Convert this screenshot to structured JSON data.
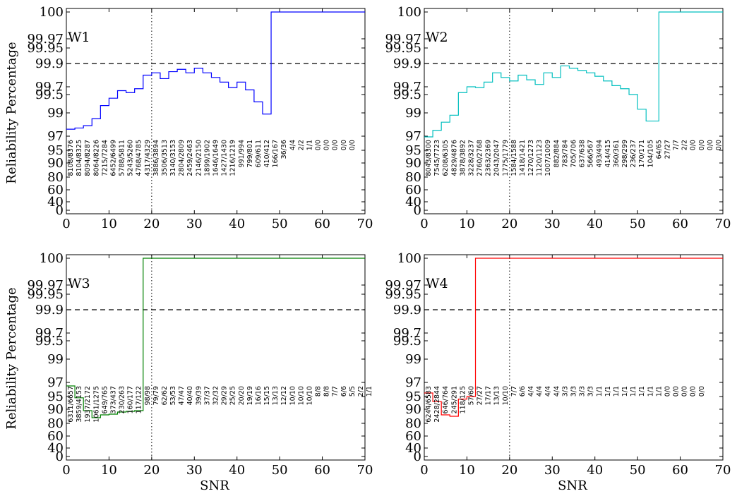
{
  "figure": {
    "ylabel": "Reliability Percentage",
    "xlabel": "SNR"
  },
  "chart_data": [
    {
      "type": "line",
      "title": "W1",
      "color": "#0000ff",
      "xlim": [
        0,
        70
      ],
      "xticks": [
        0,
        10,
        20,
        30,
        40,
        50,
        60,
        70
      ],
      "yticks": [
        "0",
        "40",
        "60",
        "80",
        "90",
        "95",
        "97",
        "99",
        "99.5",
        "99.7",
        "99.9",
        "99.95",
        "99.97",
        "100"
      ],
      "yscale": "nonlinear reliability scale",
      "threshold_y": 99.9,
      "snr_marker_x": 20,
      "x": [
        0,
        1,
        2,
        3,
        4,
        5,
        6,
        7,
        8,
        9,
        10,
        11,
        12,
        13,
        14,
        15,
        16,
        17,
        18,
        19,
        20,
        21,
        22,
        23,
        24,
        25,
        26,
        27,
        28,
        29,
        30,
        31,
        32,
        33,
        34,
        35,
        36,
        37,
        38,
        39,
        40,
        41,
        42,
        43,
        44,
        45,
        46,
        47,
        48,
        49,
        50,
        51,
        52,
        53,
        54,
        55,
        56,
        57,
        58,
        59,
        60,
        61,
        62,
        63,
        64,
        65,
        66,
        67,
        68,
        69
      ],
      "y": [
        97.6,
        97.6,
        97.7,
        97.7,
        97.9,
        97.9,
        98.5,
        98.5,
        99.2,
        99.2,
        99.4,
        99.4,
        99.6,
        99.6,
        99.55,
        99.55,
        99.65,
        99.65,
        99.8,
        99.8,
        99.82,
        99.82,
        99.77,
        99.77,
        99.83,
        99.83,
        99.85,
        99.85,
        99.82,
        99.82,
        99.86,
        99.86,
        99.82,
        99.82,
        99.78,
        99.78,
        99.74,
        99.74,
        99.68,
        99.68,
        99.74,
        99.74,
        99.62,
        99.62,
        99.3,
        99.3,
        98.9,
        98.9,
        100,
        100,
        100,
        100,
        100,
        100,
        100,
        100,
        100,
        100,
        100,
        100,
        100,
        100,
        100,
        100,
        100,
        100,
        100,
        100,
        100,
        100
      ],
      "ratios": [
        "8108/8376",
        "8104/8325",
        "8094/8287",
        "8064/8226",
        "7215/7284",
        "6452/6499",
        "5788/5811",
        "5243/5260",
        "4768/4785",
        "4317/4329",
        "3886/3894",
        "3506/3513",
        "3140/3153",
        "2804/2809",
        "2459/2463",
        "2146/2150",
        "1899/1902",
        "1646/1649",
        "1427/1430",
        "1216/1219",
        "991/994",
        "799/801",
        "609/611",
        "410/412",
        "166/167",
        "36/36",
        "4/4",
        "2/2",
        "1/1",
        "0/0",
        "0/0",
        "0/0",
        "0/0",
        "0/0"
      ]
    },
    {
      "type": "line",
      "title": "W2",
      "color": "#00bfbf",
      "xlim": [
        0,
        70
      ],
      "xticks": [
        0,
        10,
        20,
        30,
        40,
        50,
        60,
        70
      ],
      "yticks": [
        "0",
        "40",
        "60",
        "80",
        "90",
        "95",
        "97",
        "99",
        "99.5",
        "99.7",
        "99.9",
        "99.95",
        "99.97",
        "100"
      ],
      "threshold_y": 99.9,
      "snr_marker_x": 20,
      "x": [
        0,
        1,
        2,
        3,
        4,
        5,
        6,
        7,
        8,
        9,
        10,
        11,
        12,
        13,
        14,
        15,
        16,
        17,
        18,
        19,
        20,
        21,
        22,
        23,
        24,
        25,
        26,
        27,
        28,
        29,
        30,
        31,
        32,
        33,
        34,
        35,
        36,
        37,
        38,
        39,
        40,
        41,
        42,
        43,
        44,
        45,
        46,
        47,
        48,
        49,
        50,
        51,
        52,
        53,
        54,
        55,
        56,
        57,
        58,
        59,
        60,
        61,
        62,
        63,
        64,
        65,
        66,
        67,
        68,
        69
      ],
      "y": [
        96.9,
        96.9,
        97.5,
        97.5,
        98.2,
        98.2,
        98.8,
        98.8,
        99.55,
        99.55,
        99.7,
        99.7,
        99.68,
        99.68,
        99.74,
        99.74,
        99.82,
        99.82,
        99.78,
        99.78,
        99.75,
        99.75,
        99.8,
        99.8,
        99.76,
        99.76,
        99.72,
        99.72,
        99.82,
        99.82,
        99.78,
        99.78,
        99.88,
        99.88,
        99.86,
        99.86,
        99.84,
        99.84,
        99.82,
        99.82,
        99.79,
        99.79,
        99.75,
        99.75,
        99.71,
        99.71,
        99.65,
        99.65,
        99.5,
        99.5,
        99.1,
        99.1,
        98.3,
        98.3,
        98.3,
        100,
        100,
        100,
        100,
        100,
        100,
        100,
        100,
        100,
        100,
        100,
        100,
        100,
        100,
        100
      ],
      "ratios": [
        "8043/8300",
        "7545/7723",
        "6208/6305",
        "4829/4876",
        "3878/3892",
        "3228/3237",
        "2760/2768",
        "2363/2369",
        "2043/2047",
        "1775/1779",
        "1584/1588",
        "1418/1421",
        "1270/1273",
        "1120/1123",
        "1007/1009",
        "882/884",
        "783/784",
        "705/706",
        "637/638",
        "566/567",
        "493/494",
        "414/415",
        "360/361",
        "298/299",
        "236/237",
        "170/171",
        "104/105",
        "64/65",
        "27/27",
        "7/7",
        "2/2",
        "0/0",
        "0/0",
        "0/0",
        "0/0"
      ]
    },
    {
      "type": "line",
      "title": "W3",
      "color": "#008000",
      "xlim": [
        0,
        70
      ],
      "xticks": [
        0,
        10,
        20,
        30,
        40,
        50,
        60,
        70
      ],
      "yticks": [
        "0",
        "40",
        "60",
        "80",
        "90",
        "95",
        "97",
        "99",
        "99.5",
        "99.7",
        "99.9",
        "99.95",
        "99.97",
        "100"
      ],
      "threshold_y": 99.9,
      "snr_marker_x": 20,
      "x": [
        0,
        1,
        2,
        3,
        4,
        5,
        6,
        7,
        8,
        9,
        10,
        11,
        12,
        13,
        14,
        15,
        16,
        17,
        18,
        19,
        20,
        21,
        22,
        23,
        24,
        25,
        26,
        27,
        28,
        29,
        30,
        31,
        32,
        33,
        34,
        35,
        36,
        37,
        38,
        39,
        40,
        41,
        42,
        43,
        44,
        45,
        46,
        47,
        48,
        49,
        50,
        51,
        52,
        53,
        54,
        55,
        56,
        57,
        58,
        59,
        60,
        61,
        62,
        63,
        64,
        65,
        66,
        67,
        68,
        69
      ],
      "y": [
        96.5,
        96.5,
        94.5,
        94.5,
        89,
        89,
        84,
        84,
        86,
        86,
        86.5,
        86.5,
        88,
        88,
        88.5,
        88.5,
        89,
        89,
        100,
        100,
        100,
        100,
        100,
        100,
        100,
        100,
        100,
        100,
        100,
        100,
        100,
        100,
        100,
        100,
        100,
        100,
        100,
        100,
        100,
        100,
        100,
        100,
        100,
        100,
        100,
        100,
        100,
        100,
        100,
        100,
        100,
        100,
        100,
        100,
        100,
        100,
        100,
        100,
        100,
        100,
        100,
        100,
        100,
        100,
        100,
        100,
        100,
        100,
        100,
        100
      ],
      "ratios": [
        "6311/6657",
        "3859/4153",
        "1937/2172",
        "1061/1275",
        "649/765",
        "373/437",
        "230/263",
        "160/177",
        "117/122",
        "98/98",
        "79/79",
        "62/62",
        "53/53",
        "47/47",
        "40/40",
        "39/39",
        "37/37",
        "32/32",
        "29/29",
        "25/25",
        "20/20",
        "19/19",
        "16/16",
        "15/15",
        "13/13",
        "12/12",
        "10/10",
        "10/10",
        "10/10",
        "8/8",
        "8/8",
        "7/7",
        "6/6",
        "5/5",
        "2/2",
        "1/1"
      ]
    },
    {
      "type": "line",
      "title": "W4",
      "color": "#ff0000",
      "xlim": [
        0,
        70
      ],
      "xticks": [
        0,
        10,
        20,
        30,
        40,
        50,
        60,
        70
      ],
      "yticks": [
        "0",
        "40",
        "60",
        "80",
        "90",
        "95",
        "97",
        "99",
        "99.5",
        "99.7",
        "99.9",
        "99.95",
        "99.97",
        "100"
      ],
      "threshold_y": 99.9,
      "snr_marker_x": 20,
      "x": [
        0,
        1,
        2,
        3,
        4,
        5,
        6,
        7,
        8,
        9,
        10,
        11,
        12,
        13,
        14,
        15,
        16,
        17,
        18,
        19,
        20,
        21,
        22,
        23,
        24,
        25,
        26,
        27,
        28,
        29,
        30,
        31,
        32,
        33,
        34,
        35,
        36,
        37,
        38,
        39,
        40,
        41,
        42,
        43,
        44,
        45,
        46,
        47,
        48,
        49,
        50,
        51,
        52,
        53,
        54,
        55,
        56,
        57,
        58,
        59,
        60,
        61,
        62,
        63,
        64,
        65,
        66,
        67,
        68,
        69
      ],
      "y": [
        95.5,
        95.5,
        93,
        93,
        86,
        86,
        85,
        85,
        94,
        94,
        95,
        95,
        100,
        100,
        100,
        100,
        100,
        100,
        100,
        100,
        100,
        100,
        100,
        100,
        100,
        100,
        100,
        100,
        100,
        100,
        100,
        100,
        100,
        100,
        100,
        100,
        100,
        100,
        100,
        100,
        100,
        100,
        100,
        100,
        100,
        100,
        100,
        100,
        100,
        100,
        100,
        100,
        100,
        100,
        100,
        100,
        100,
        100,
        100,
        100,
        100,
        100,
        100,
        100,
        100,
        100,
        100,
        100,
        100,
        100
      ],
      "ratios": [
        "6244/6583",
        "2428/2844",
        "646/764",
        "245/291",
        "118/125",
        "57/60",
        "27/27",
        "17/17",
        "13/13",
        "10/10",
        "7/7",
        "6/6",
        "4/4",
        "4/4",
        "4/4",
        "4/4",
        "3/3",
        "3/3",
        "3/3",
        "3/3",
        "1/1",
        "1/1",
        "1/1",
        "1/1",
        "1/1",
        "1/1",
        "1/1",
        "1/1",
        "0/0",
        "0/0",
        "0/0",
        "0/0",
        "0/0"
      ]
    }
  ]
}
